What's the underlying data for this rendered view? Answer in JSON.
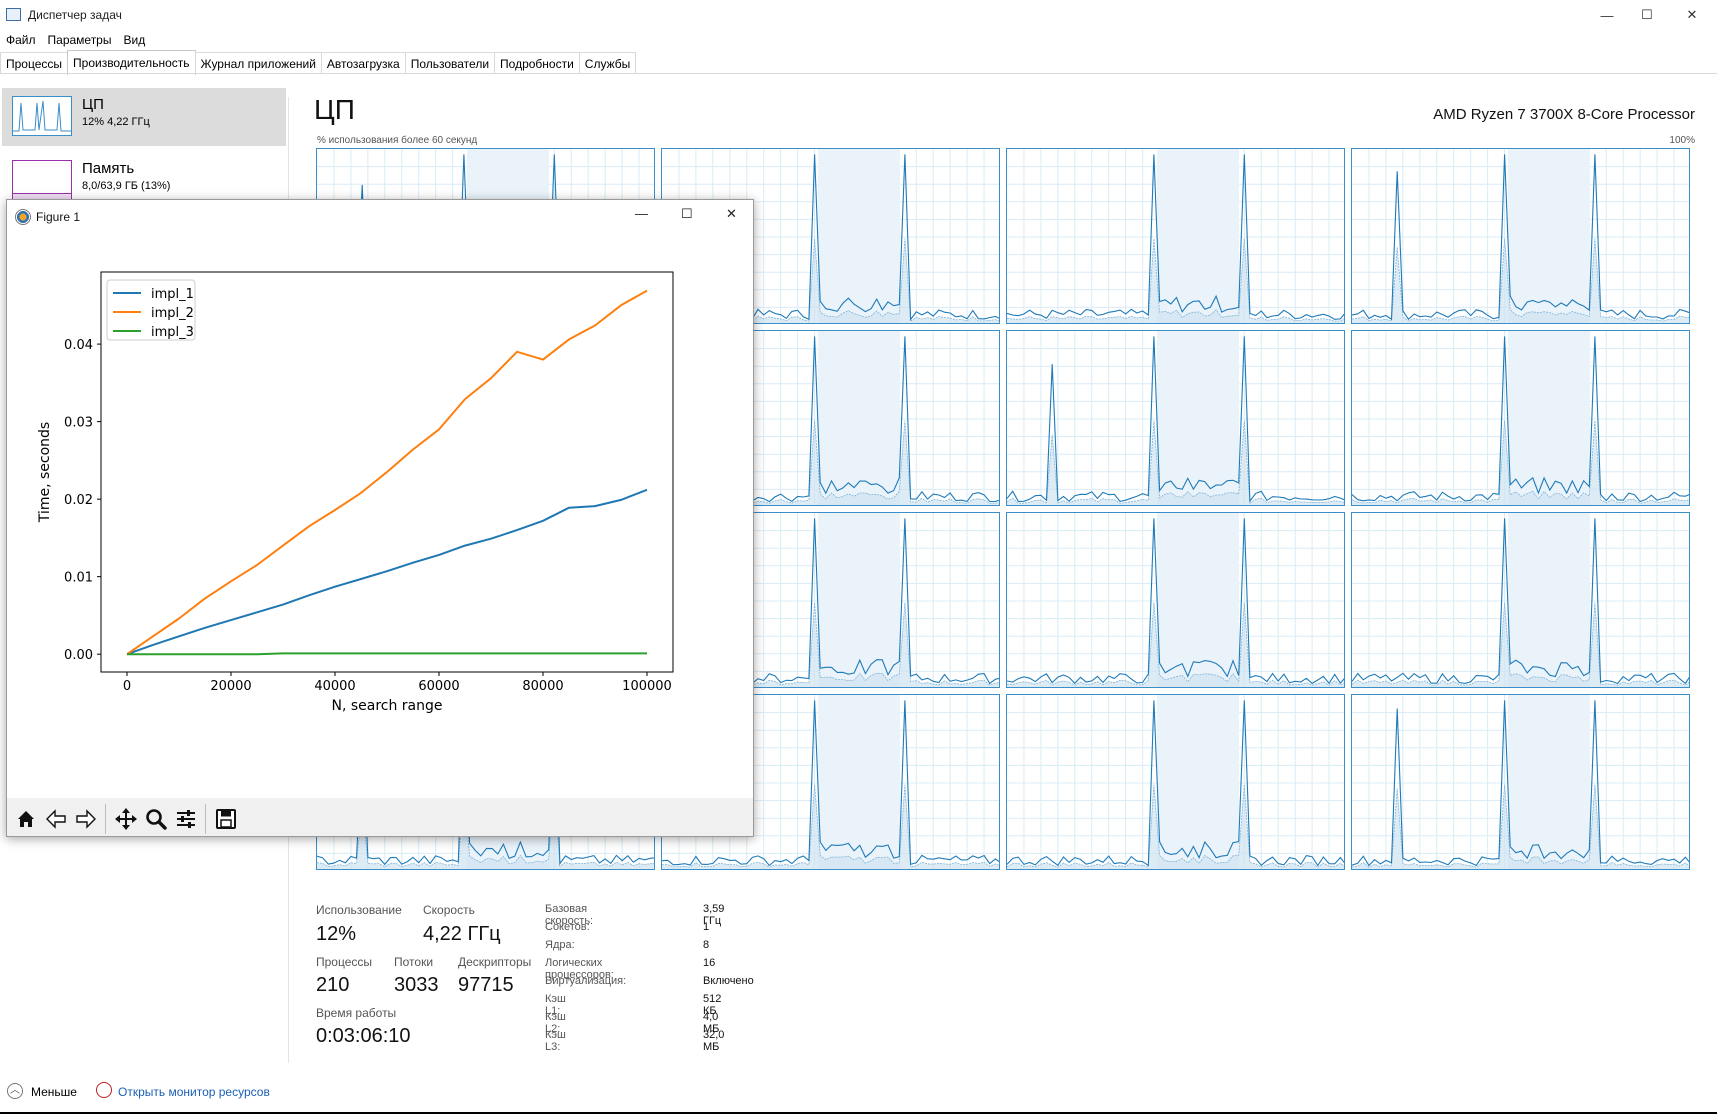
{
  "window": {
    "title": "Диспетчер задач",
    "minimize": "—",
    "maximize": "☐",
    "close": "✕"
  },
  "menu": [
    "Файл",
    "Параметры",
    "Вид"
  ],
  "tabs": [
    "Процессы",
    "Производительность",
    "Журнал приложений",
    "Автозагрузка",
    "Пользователи",
    "Подробности",
    "Службы"
  ],
  "sidebar": {
    "items": [
      {
        "name": "ЦП",
        "sub": "12% 4,22 ГГц"
      },
      {
        "name": "Память",
        "sub": "8,0/63,9 ГБ (13%)"
      }
    ]
  },
  "main": {
    "heading": "ЦП",
    "processor": "AMD Ryzen 7 3700X 8-Core Processor",
    "graph_caption": "% использования более 60 секунд",
    "graph_max": "100%"
  },
  "stats": {
    "usage_label": "Использование",
    "usage_value": "12%",
    "speed_label": "Скорость",
    "speed_value": "4,22 ГГц",
    "processes_label": "Процессы",
    "processes_value": "210",
    "threads_label": "Потоки",
    "threads_value": "3033",
    "handles_label": "Дескрипторы",
    "handles_value": "97715",
    "uptime_label": "Время работы",
    "uptime_value": "0:03:06:10"
  },
  "details": [
    {
      "k": "Базовая скорость:",
      "v": "3,59 ГГц"
    },
    {
      "k": "Сокетов:",
      "v": "1"
    },
    {
      "k": "Ядра:",
      "v": "8"
    },
    {
      "k": "Логических процессоров:",
      "v": "16"
    },
    {
      "k": "Виртуализация:",
      "v": "Включено"
    },
    {
      "k": "Кэш L1:",
      "v": "512 КБ"
    },
    {
      "k": "Кэш L2:",
      "v": "4,0 МБ"
    },
    {
      "k": "Кэш L3:",
      "v": "32,0 МБ"
    }
  ],
  "footer": {
    "less": "Меньше",
    "resource_monitor": "Открыть монитор ресурсов"
  },
  "figure": {
    "title": "Figure 1",
    "minimize": "—",
    "maximize": "☐",
    "close": "✕"
  },
  "chart_data": {
    "type": "line",
    "title": "",
    "xlabel": "N, search range",
    "ylabel": "Time, seconds",
    "xlim": [
      -5000,
      105000
    ],
    "ylim": [
      -0.0023,
      0.0493
    ],
    "xticks": [
      0,
      20000,
      40000,
      60000,
      80000,
      100000
    ],
    "xtick_labels": [
      "0",
      "20000",
      "40000",
      "60000",
      "80000",
      "100000"
    ],
    "yticks": [
      0.0,
      0.01,
      0.02,
      0.03,
      0.04
    ],
    "ytick_labels": [
      "0.00",
      "0.01",
      "0.02",
      "0.03",
      "0.04"
    ],
    "legend": "top-left",
    "grid": false,
    "x": [
      0,
      5000,
      10000,
      15000,
      20000,
      25000,
      30000,
      35000,
      40000,
      45000,
      50000,
      55000,
      60000,
      65000,
      70000,
      75000,
      80000,
      85000,
      90000,
      95000,
      100000
    ],
    "series": [
      {
        "name": "impl_1",
        "color": "#1f77b4",
        "values": [
          0.0,
          0.0012,
          0.0023,
          0.0034,
          0.0044,
          0.0054,
          0.0064,
          0.0076,
          0.0087,
          0.0097,
          0.0107,
          0.0118,
          0.0128,
          0.014,
          0.0149,
          0.016,
          0.0172,
          0.0189,
          0.0191,
          0.0199,
          0.0212
        ]
      },
      {
        "name": "impl_2",
        "color": "#ff7f0e",
        "values": [
          0.0,
          0.0023,
          0.0046,
          0.0072,
          0.0094,
          0.0115,
          0.014,
          0.0165,
          0.0186,
          0.0208,
          0.0235,
          0.0264,
          0.029,
          0.0329,
          0.0356,
          0.039,
          0.038,
          0.0406,
          0.0424,
          0.045,
          0.0469
        ]
      },
      {
        "name": "impl_3",
        "color": "#2ca02c",
        "values": [
          0.0,
          0.0,
          0.0,
          0.0,
          0.0,
          0.0,
          0.0001,
          0.0001,
          0.0001,
          0.0001,
          0.0001,
          0.0001,
          0.0001,
          0.0001,
          0.0001,
          0.0001,
          0.0001,
          0.0001,
          0.0001,
          0.0001,
          0.0001
        ]
      }
    ]
  },
  "toolbar": [
    "home-icon",
    "back-icon",
    "forward-icon",
    "pan-icon",
    "zoom-icon",
    "configure-icon",
    "save-icon"
  ]
}
